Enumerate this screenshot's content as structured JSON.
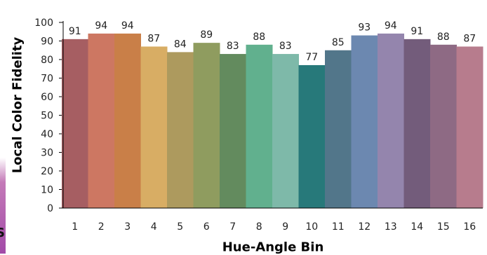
{
  "colors": {
    "bars": [
      "#a65e62",
      "#cd7762",
      "#c97f48",
      "#d8ad64",
      "#ad9a5e",
      "#8f9c5f",
      "#638b5e",
      "#61b08e",
      "#7eb9a9",
      "#27797a",
      "#52768a",
      "#6c88b0",
      "#9485ad",
      "#735c7b",
      "#8e6a84",
      "#b77c8d"
    ],
    "axis": "#000000",
    "background": "#ffffff"
  },
  "chart_data": {
    "type": "bar",
    "categories": [
      "1",
      "2",
      "3",
      "4",
      "5",
      "6",
      "7",
      "8",
      "9",
      "10",
      "11",
      "12",
      "13",
      "14",
      "15",
      "16"
    ],
    "values": [
      91,
      94,
      94,
      87,
      84,
      89,
      83,
      88,
      83,
      77,
      85,
      93,
      94,
      91,
      88,
      87
    ],
    "xlabel": "Hue-Angle Bin",
    "ylabel": "Local Color Fidelity",
    "ylim": [
      0,
      100
    ],
    "yticks": [
      0,
      10,
      20,
      30,
      40,
      50,
      60,
      70,
      80,
      90,
      100
    ],
    "grid": false,
    "legend": "none"
  }
}
